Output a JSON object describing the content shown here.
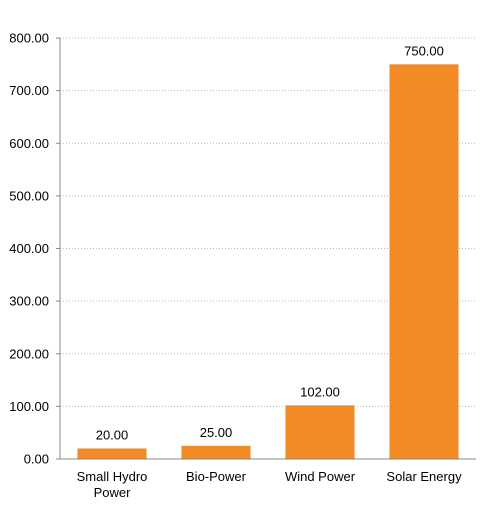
{
  "chart_data": {
    "type": "bar",
    "categories": [
      "Small Hydro\nPower",
      "Bio-Power",
      "Wind Power",
      "Solar Energy"
    ],
    "values": [
      20.0,
      25.0,
      102.0,
      750.0
    ],
    "value_labels": [
      "20.00",
      "25.00",
      "102.00",
      "750.00"
    ],
    "yticks": [
      "0.00",
      "100.00",
      "200.00",
      "300.00",
      "400.00",
      "500.00",
      "600.00",
      "700.00",
      "800.00"
    ],
    "ylim": [
      0,
      800
    ],
    "grid": true,
    "gridline_style": "dotted",
    "bar_color": "#F28A26",
    "title": "",
    "xlabel": "",
    "ylabel": ""
  }
}
